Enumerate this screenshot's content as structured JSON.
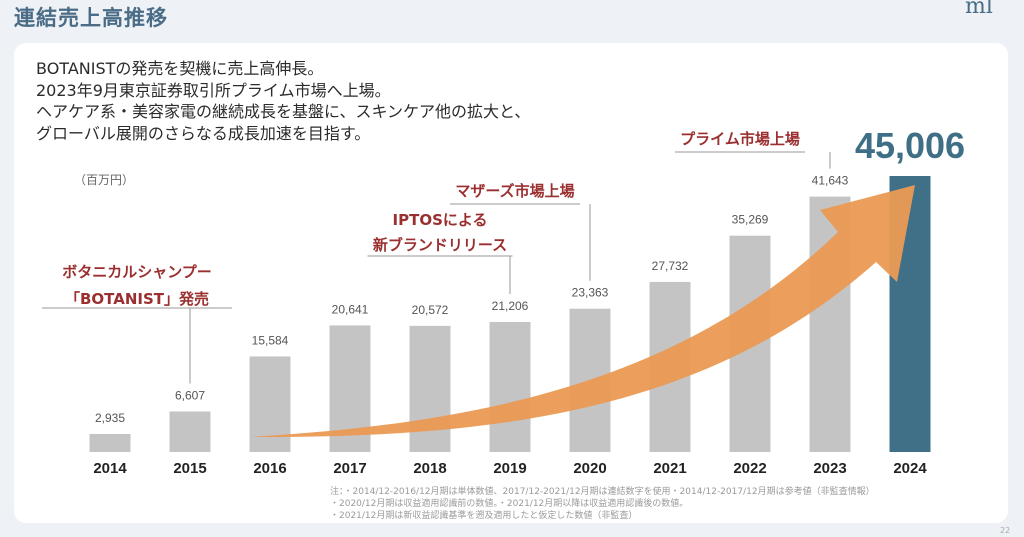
{
  "header": {
    "title": "連結売上高推移",
    "logo": "ml"
  },
  "intro_lines": [
    "BOTANISTの発売を契機に売上高伸長。",
    "2023年9月東京証券取引所プライム市場へ上場。",
    "ヘアケア系・美容家電の継続成長を基盤に、スキンケア他の拡大と、",
    "グローバル展開のさらなる成長加速を目指す。"
  ],
  "notes": [
    "注：・2014/12-2016/12月期は単体数値、2017/12-2021/12月期は連結数字を使用・2014/12-2017/12月期は参考値（非監査情報）",
    "・2020/12月期は収益適用認識前の数値。・2021/12月期以降は収益適用認識後の数値。",
    "・2021/12月期は新収益認識基準を遡及適用したと仮定した数値（非監査）"
  ],
  "page_number": "22",
  "chart_data": {
    "type": "bar",
    "unit_label": "（百万円）",
    "categories": [
      "2014",
      "2015",
      "2016",
      "2017",
      "2018",
      "2019",
      "2020",
      "2021",
      "2022",
      "2023",
      "2024"
    ],
    "values": [
      2935,
      6607,
      15584,
      20641,
      20572,
      21206,
      23363,
      27732,
      35269,
      41643,
      45006
    ],
    "value_labels": [
      "2,935",
      "6,607",
      "15,584",
      "20,641",
      "20,572",
      "21,206",
      "23,363",
      "27,732",
      "35,269",
      "41,643",
      "45,006"
    ],
    "highlight_index": 10,
    "colors": {
      "bar": "#c4c4c4",
      "highlight": "#3f7088",
      "arrow": "#eb9a53",
      "annotation": "#9b2f2f",
      "big_value": "#3e6f86"
    },
    "annotations": [
      {
        "lines": [
          "ボタニカルシャンプー",
          "「BOTANIST」発売"
        ],
        "year": "2015"
      },
      {
        "lines": [
          "IPTOSによる",
          "新ブランドリリース"
        ],
        "year": "2019"
      },
      {
        "lines": [
          "マザーズ市場上場"
        ],
        "year": "2020"
      },
      {
        "lines": [
          "プライム市場上場"
        ],
        "year": "2023"
      }
    ],
    "grid": false,
    "legend": "none"
  }
}
